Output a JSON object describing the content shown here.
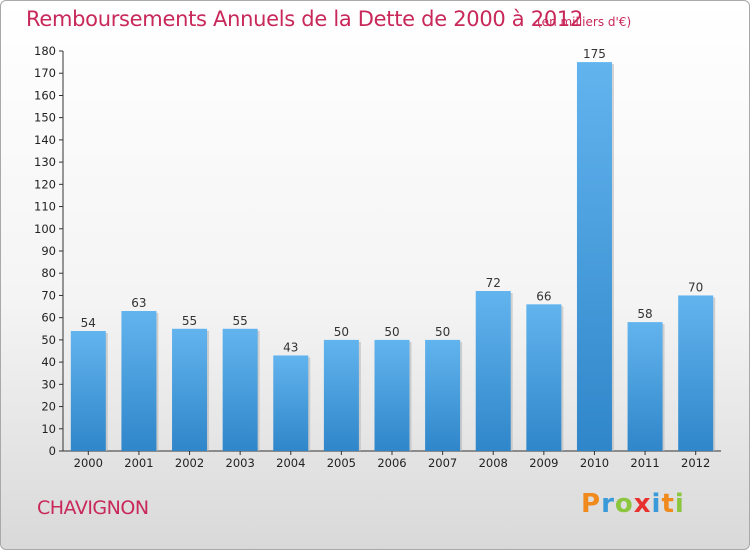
{
  "header": {
    "title": "Remboursements Annuels de la Dette de 2000 à 2012",
    "unit": "(en milliers d'€)"
  },
  "footer": {
    "commune": "CHAVIGNON",
    "logo": "Proxiti"
  },
  "colors": {
    "title": "#c8285a",
    "bar_top": "#62b4ee",
    "bar_bottom": "#2f86c9"
  },
  "chart_data": {
    "type": "bar",
    "title": "Remboursements Annuels de la Dette de 2000 à 2012",
    "xlabel": "",
    "ylabel": "",
    "categories": [
      "2000",
      "2001",
      "2002",
      "2003",
      "2004",
      "2005",
      "2006",
      "2007",
      "2008",
      "2009",
      "2010",
      "2011",
      "2012"
    ],
    "values": [
      54,
      63,
      55,
      55,
      43,
      50,
      50,
      50,
      72,
      66,
      175,
      58,
      70
    ],
    "ylim": [
      0,
      180
    ],
    "yticks": [
      0,
      10,
      20,
      30,
      40,
      50,
      60,
      70,
      80,
      90,
      100,
      110,
      120,
      130,
      140,
      150,
      160,
      170,
      180
    ],
    "grid": false,
    "legend": "none"
  }
}
